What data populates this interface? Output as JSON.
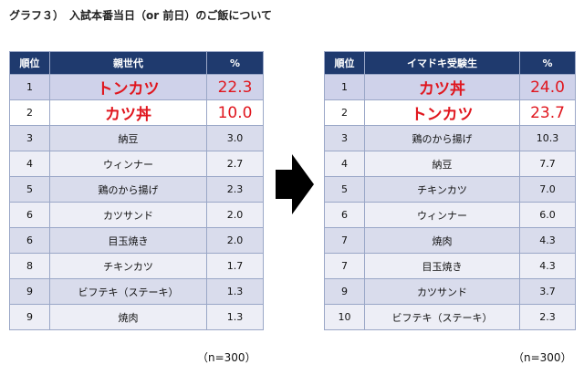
{
  "title": "グラフ３）　入試本番当日（or 前日）のご飯について",
  "left": {
    "headers": [
      "順位",
      "親世代",
      "%"
    ],
    "rows": [
      {
        "rank": "1",
        "item": "トンカツ",
        "pct": "22.3"
      },
      {
        "rank": "2",
        "item": "カツ丼",
        "pct": "10.0"
      },
      {
        "rank": "3",
        "item": "納豆",
        "pct": "3.0"
      },
      {
        "rank": "4",
        "item": "ウィンナー",
        "pct": "2.7"
      },
      {
        "rank": "5",
        "item": "鶏のから揚げ",
        "pct": "2.3"
      },
      {
        "rank": "6",
        "item": "カツサンド",
        "pct": "2.0"
      },
      {
        "rank": "6",
        "item": "目玉焼き",
        "pct": "2.0"
      },
      {
        "rank": "8",
        "item": "チキンカツ",
        "pct": "1.7"
      },
      {
        "rank": "9",
        "item": "ビフテキ（ステーキ）",
        "pct": "1.3"
      },
      {
        "rank": "9",
        "item": "焼肉",
        "pct": "1.3"
      }
    ],
    "note": "（n=300）"
  },
  "right": {
    "headers": [
      "順位",
      "イマドキ受験生",
      "%"
    ],
    "rows": [
      {
        "rank": "1",
        "item": "カツ丼",
        "pct": "24.0"
      },
      {
        "rank": "2",
        "item": "トンカツ",
        "pct": "23.7"
      },
      {
        "rank": "3",
        "item": "鶏のから揚げ",
        "pct": "10.3"
      },
      {
        "rank": "4",
        "item": "納豆",
        "pct": "7.7"
      },
      {
        "rank": "5",
        "item": "チキンカツ",
        "pct": "7.0"
      },
      {
        "rank": "6",
        "item": "ウィンナー",
        "pct": "6.0"
      },
      {
        "rank": "7",
        "item": "焼肉",
        "pct": "4.3"
      },
      {
        "rank": "7",
        "item": "目玉焼き",
        "pct": "4.3"
      },
      {
        "rank": "9",
        "item": "カツサンド",
        "pct": "3.7"
      },
      {
        "rank": "10",
        "item": "ビフテキ（ステーキ）",
        "pct": "2.3"
      }
    ],
    "note": "（n=300）"
  },
  "colors": {
    "header_bg": "#1f3a6e",
    "highlight": "#e0161e",
    "row_a": "#d9dcec",
    "row_b": "#edeef6"
  },
  "icons": {
    "arrow": "right-arrow-icon"
  }
}
